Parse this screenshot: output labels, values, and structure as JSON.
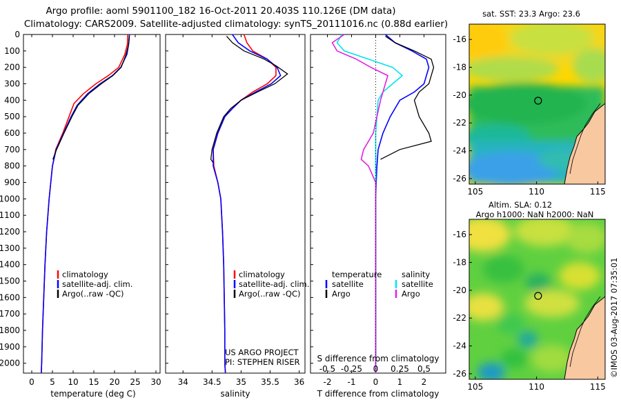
{
  "header": {
    "line1": "Argo profile: aoml 5901100_182 16-Oct-2011 20.403S 110.126E (DM data)",
    "line2": "Climatology: CARS2009. Satellite-adjusted climatology: synTS_20111016.nc (0.88d earlier)"
  },
  "colors": {
    "climatology": "#ff0000",
    "satellite": "#0000ff",
    "argo": "#000000",
    "salinity_satellite": "#00e5ee",
    "salinity_argo": "#e020e0",
    "land": "#f8c8a0"
  },
  "chart_data": [
    {
      "type": "line",
      "xlabel": "temperature (deg C)",
      "ylabel": "",
      "xlim": [
        -2,
        31
      ],
      "ylim": [
        2060,
        0
      ],
      "xticks": [
        0,
        5,
        10,
        15,
        20,
        25,
        30
      ],
      "yticks": [
        0,
        100,
        200,
        300,
        400,
        500,
        600,
        700,
        800,
        900,
        1000,
        1100,
        1200,
        1300,
        1400,
        1500,
        1600,
        1700,
        1800,
        1900,
        2000
      ],
      "legend": [
        "climatology",
        "satellite-adj. clim.",
        "Argo(..raw -QC)"
      ],
      "legend_position": "lower-center",
      "series": [
        {
          "name": "climatology",
          "color": "#ff0000",
          "points": [
            [
              23.2,
              0
            ],
            [
              23.1,
              60
            ],
            [
              22.5,
              120
            ],
            [
              21.0,
              200
            ],
            [
              18.5,
              250
            ],
            [
              15.5,
              300
            ],
            [
              12.5,
              360
            ],
            [
              10.2,
              420
            ],
            [
              9.0,
              500
            ],
            [
              7.5,
              600
            ],
            [
              5.8,
              700
            ],
            [
              5.0,
              800
            ],
            [
              4.2,
              1000
            ],
            [
              3.6,
              1200
            ],
            [
              3.2,
              1400
            ],
            [
              2.9,
              1600
            ],
            [
              2.6,
              1800
            ],
            [
              2.4,
              2000
            ],
            [
              2.3,
              2060
            ]
          ]
        },
        {
          "name": "satellite-adj. clim.",
          "color": "#0000ff",
          "points": [
            [
              23.6,
              0
            ],
            [
              23.4,
              60
            ],
            [
              23.0,
              120
            ],
            [
              21.5,
              200
            ],
            [
              19.5,
              250
            ],
            [
              16.5,
              300
            ],
            [
              13.5,
              360
            ],
            [
              11.0,
              430
            ],
            [
              9.5,
              500
            ],
            [
              7.7,
              600
            ],
            [
              5.9,
              700
            ],
            [
              5.0,
              800
            ],
            [
              4.2,
              1000
            ],
            [
              3.6,
              1200
            ],
            [
              3.2,
              1400
            ],
            [
              2.9,
              1600
            ],
            [
              2.6,
              1800
            ],
            [
              2.4,
              2000
            ],
            [
              2.3,
              2060
            ]
          ]
        },
        {
          "name": "Argo(..raw -QC)",
          "color": "#000000",
          "points": [
            [
              23.6,
              10
            ],
            [
              23.4,
              60
            ],
            [
              22.8,
              120
            ],
            [
              21.6,
              200
            ],
            [
              19.6,
              250
            ],
            [
              16.8,
              300
            ],
            [
              13.8,
              360
            ],
            [
              11.2,
              430
            ],
            [
              9.7,
              500
            ],
            [
              7.8,
              600
            ],
            [
              6.0,
              700
            ],
            [
              5.1,
              760
            ]
          ]
        }
      ]
    },
    {
      "type": "line",
      "xlabel": "salinity",
      "ylabel": "",
      "xlim": [
        33.7,
        36.1
      ],
      "ylim": [
        2060,
        0
      ],
      "xticks": [
        34,
        34.5,
        35,
        35.5,
        36
      ],
      "legend": [
        "climatology",
        "satellite-adj. clim.",
        "Argo(..raw -QC)"
      ],
      "legend_position": "lower-center",
      "annotations": [
        "US ARGO PROJECT",
        "PI: STEPHEN RISER"
      ],
      "series": [
        {
          "name": "climatology",
          "color": "#ff0000",
          "points": [
            [
              35.05,
              0
            ],
            [
              35.1,
              50
            ],
            [
              35.2,
              100
            ],
            [
              35.45,
              150
            ],
            [
              35.6,
              200
            ],
            [
              35.6,
              250
            ],
            [
              35.45,
              300
            ],
            [
              35.2,
              350
            ],
            [
              35.0,
              400
            ],
            [
              34.85,
              450
            ],
            [
              34.72,
              500
            ],
            [
              34.6,
              600
            ],
            [
              34.52,
              700
            ],
            [
              34.53,
              800
            ],
            [
              34.6,
              900
            ],
            [
              34.65,
              1000
            ],
            [
              34.68,
              1200
            ],
            [
              34.7,
              1400
            ],
            [
              34.71,
              1600
            ],
            [
              34.72,
              1800
            ],
            [
              34.72,
              2000
            ],
            [
              34.73,
              2060
            ]
          ]
        },
        {
          "name": "satellite-adj. clim.",
          "color": "#0000ff",
          "points": [
            [
              34.85,
              0
            ],
            [
              34.95,
              50
            ],
            [
              35.15,
              100
            ],
            [
              35.45,
              150
            ],
            [
              35.62,
              200
            ],
            [
              35.68,
              250
            ],
            [
              35.52,
              300
            ],
            [
              35.25,
              350
            ],
            [
              35.0,
              400
            ],
            [
              34.85,
              450
            ],
            [
              34.72,
              500
            ],
            [
              34.6,
              600
            ],
            [
              34.52,
              700
            ],
            [
              34.52,
              800
            ],
            [
              34.6,
              900
            ],
            [
              34.65,
              1000
            ],
            [
              34.68,
              1200
            ],
            [
              34.7,
              1400
            ],
            [
              34.71,
              1600
            ],
            [
              34.72,
              1800
            ],
            [
              34.72,
              2000
            ],
            [
              34.73,
              2060
            ]
          ]
        },
        {
          "name": "Argo(..raw -QC)",
          "color": "#000000",
          "points": [
            [
              34.75,
              10
            ],
            [
              34.85,
              50
            ],
            [
              35.05,
              100
            ],
            [
              35.4,
              150
            ],
            [
              35.6,
              190
            ],
            [
              35.8,
              240
            ],
            [
              35.58,
              300
            ],
            [
              35.28,
              350
            ],
            [
              35.0,
              400
            ],
            [
              34.82,
              450
            ],
            [
              34.7,
              500
            ],
            [
              34.58,
              600
            ],
            [
              34.5,
              700
            ],
            [
              34.48,
              760
            ],
            [
              34.52,
              780
            ]
          ]
        }
      ]
    },
    {
      "type": "line",
      "xlabel": "T difference from climatology",
      "xlabel2": "S difference from climatology",
      "xlim": [
        -2.7,
        2.9
      ],
      "xticks": [
        -2,
        -1,
        0,
        1,
        2
      ],
      "xticks_s": [
        -0.5,
        -0.25,
        0,
        0.25,
        0.5
      ],
      "ylim": [
        2060,
        0
      ],
      "legend": [
        "temperature",
        "satellite",
        "Argo",
        "salinity",
        "satellite",
        "Argo"
      ],
      "legend_position": "lower-center",
      "series": [
        {
          "name": "satellite",
          "color": "#0000ff",
          "group": "temperature",
          "points": [
            [
              0.4,
              0
            ],
            [
              0.8,
              50
            ],
            [
              1.5,
              100
            ],
            [
              2.1,
              150
            ],
            [
              2.2,
              200
            ],
            [
              2.1,
              250
            ],
            [
              2.0,
              300
            ],
            [
              1.6,
              350
            ],
            [
              1.0,
              400
            ],
            [
              0.6,
              500
            ],
            [
              0.3,
              600
            ],
            [
              0.1,
              700
            ],
            [
              0.05,
              800
            ],
            [
              0.02,
              900
            ],
            [
              0.0,
              1000
            ],
            [
              0.0,
              2060
            ]
          ]
        },
        {
          "name": "Argo",
          "color": "#000000",
          "group": "temperature",
          "points": [
            [
              0.4,
              10
            ],
            [
              0.8,
              50
            ],
            [
              1.6,
              100
            ],
            [
              2.3,
              150
            ],
            [
              2.4,
              200
            ],
            [
              2.3,
              250
            ],
            [
              2.2,
              300
            ],
            [
              1.8,
              350
            ],
            [
              1.6,
              400
            ],
            [
              1.8,
              500
            ],
            [
              2.2,
              600
            ],
            [
              2.3,
              650
            ],
            [
              1.0,
              700
            ],
            [
              0.2,
              760
            ]
          ]
        },
        {
          "name": "satellite",
          "color": "#00e5ee",
          "group": "salinity",
          "points": [
            [
              -1.4,
              0
            ],
            [
              -1.6,
              50
            ],
            [
              -1.3,
              100
            ],
            [
              -0.3,
              150
            ],
            [
              0.7,
              200
            ],
            [
              1.1,
              250
            ],
            [
              0.7,
              300
            ],
            [
              0.3,
              350
            ],
            [
              0.1,
              400
            ],
            [
              0.05,
              500
            ],
            [
              0.0,
              600
            ],
            [
              0.0,
              800
            ],
            [
              0.0,
              2060
            ]
          ]
        },
        {
          "name": "Argo",
          "color": "#e020e0",
          "group": "salinity",
          "points": [
            [
              -1.3,
              0
            ],
            [
              -1.8,
              50
            ],
            [
              -1.6,
              100
            ],
            [
              -0.8,
              150
            ],
            [
              -0.2,
              200
            ],
            [
              0.5,
              250
            ],
            [
              0.4,
              300
            ],
            [
              0.2,
              400
            ],
            [
              0.05,
              500
            ],
            [
              -0.1,
              600
            ],
            [
              -0.5,
              700
            ],
            [
              -0.6,
              760
            ],
            [
              -0.3,
              800
            ],
            [
              0.0,
              900
            ],
            [
              0.0,
              2060
            ]
          ]
        }
      ]
    },
    {
      "type": "heatmap",
      "title": "sat. SST: 23.3 Argo: 23.6",
      "xlim": [
        104.5,
        115.6
      ],
      "ylim": [
        -26.4,
        -14.9
      ],
      "xticks": [
        105,
        110,
        115
      ],
      "yticks": [
        -16,
        -18,
        -20,
        -22,
        -24,
        -26
      ],
      "marker": {
        "lon": 110.126,
        "lat": -20.403
      },
      "colormap": "jet"
    },
    {
      "type": "heatmap",
      "title": "Altim. SLA: 0.12",
      "subtitle": "Argo h1000: NaN h2000: NaN",
      "xlim": [
        104.5,
        115.6
      ],
      "ylim": [
        -26.4,
        -14.9
      ],
      "xticks": [
        105,
        110,
        115
      ],
      "yticks": [
        -16,
        -18,
        -20,
        -22,
        -24,
        -26
      ],
      "marker": {
        "lon": 110.126,
        "lat": -20.403
      },
      "colormap": "jet"
    }
  ],
  "side_label": "©IMOS 03-Aug-2017 07:35:01"
}
